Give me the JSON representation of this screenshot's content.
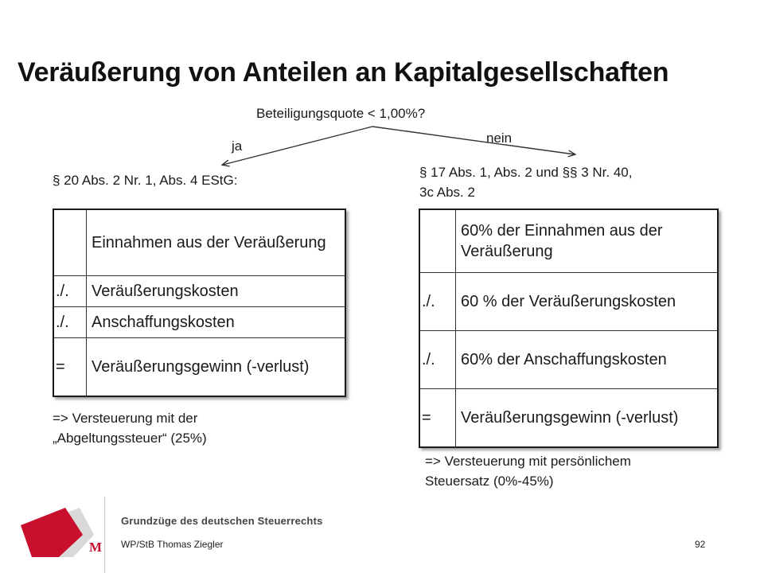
{
  "slide": {
    "title": "Veräußerung von Anteilen an Kapitalgesellschaften",
    "question": "Beteiligungsquote < 1,00%?",
    "branch_yes": "ja",
    "branch_no": "nein"
  },
  "left": {
    "law": "§ 20 Abs. 2 Nr. 1, Abs. 4 EStG:",
    "rows": [
      {
        "op": "",
        "text": "Einnahmen aus der Veräußerung"
      },
      {
        "op": "./.",
        "text": "Veräußerungskosten"
      },
      {
        "op": "./.",
        "text": "Anschaffungskosten"
      },
      {
        "op": "=",
        "text": "Veräußerungsgewinn (-verlust)"
      }
    ],
    "result_line1": "=> Versteuerung mit der",
    "result_line2": "„Abgeltungssteuer“ (25%)"
  },
  "right": {
    "law_line1": "§ 17 Abs. 1, Abs. 2 und §§ 3 Nr. 40,",
    "law_line2": "3c Abs. 2",
    "rows": [
      {
        "op": "",
        "text": "60% der Einnahmen aus der Veräußerung"
      },
      {
        "op": "./.",
        "text": "60 % der Veräußerungskosten"
      },
      {
        "op": "./.",
        "text": "60% der Anschaffungskosten"
      },
      {
        "op": "=",
        "text": "Veräußerungsgewinn (-verlust)"
      }
    ],
    "result_line1": "=> Versteuerung mit persönlichem",
    "result_line2": "Steuersatz (0%-45%)"
  },
  "footer": {
    "course": "Grundzüge des deutschen Steuerrechts",
    "author": "WP/StB Thomas Ziegler",
    "page": "92",
    "logo_letter": "M"
  },
  "colors": {
    "logo_red": "#c8102e",
    "logo_grey": "#d9d9d9"
  }
}
